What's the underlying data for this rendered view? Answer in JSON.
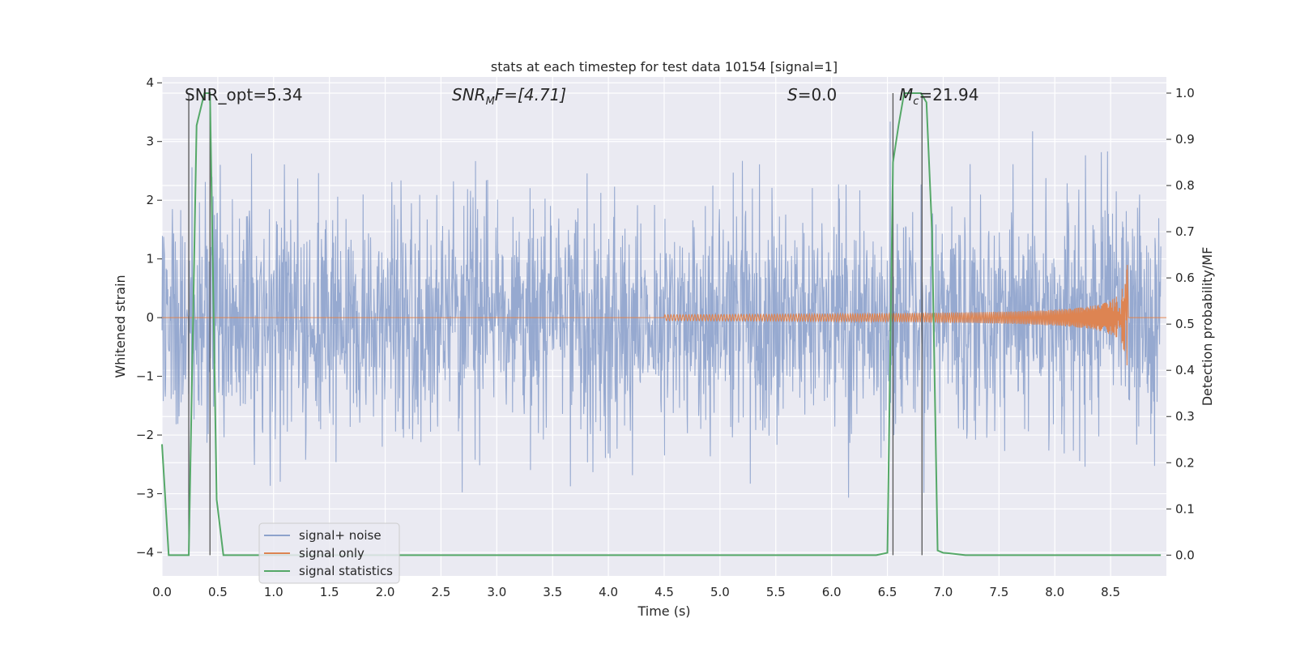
{
  "chart_data": {
    "type": "line",
    "title": "stats at each timestep for test data 10154 [signal=1]",
    "xlabel": "Time (s)",
    "ylabel_left": "Whitened strain",
    "ylabel_right": "Detection probability/MF",
    "xlim": [
      0.0,
      9.0
    ],
    "ylim_left": [
      -4.4,
      4.1
    ],
    "ylim_right": [
      -0.045,
      1.035
    ],
    "x_ticks": [
      "0.0",
      "0.5",
      "1.0",
      "1.5",
      "2.0",
      "2.5",
      "3.0",
      "3.5",
      "4.0",
      "4.5",
      "5.0",
      "5.5",
      "6.0",
      "6.5",
      "7.0",
      "7.5",
      "8.0",
      "8.5"
    ],
    "y_ticks_left": [
      "4",
      "3",
      "2",
      "1",
      "0",
      "−1",
      "−2",
      "−3",
      "−4"
    ],
    "y_ticks_right": [
      "1.0",
      "0.9",
      "0.8",
      "0.7",
      "0.6",
      "0.5",
      "0.4",
      "0.3",
      "0.2",
      "0.1",
      "0.0"
    ],
    "grid": true,
    "legend_placement": "lower-left",
    "annotations": {
      "snr_opt": "SNR_opt=5.34",
      "snr_mf_symbol": "SNR",
      "snr_mf_sub": "M",
      "snr_mf_rest": "F=[4.71]",
      "s_symbol": "S",
      "s_rest": "=0.0",
      "mc_symbol": "M",
      "mc_sub": "c",
      "mc_rest": "=21.94"
    },
    "series": [
      {
        "name": "signal+ noise",
        "color": "#8da2cc",
        "description_values": "whitened strain noise, roughly within [-2.5, 2.5] with spikes up to 3.6 and down to -4.0"
      },
      {
        "name": "signal only",
        "color": "#dd8452",
        "chirp_start": 4.5,
        "chirp_peak_time": 8.65,
        "chirp_peak_amplitude": 1.0
      },
      {
        "name": "signal statistics",
        "color": "#55a868",
        "x": [
          0.0,
          0.06,
          0.15,
          0.24,
          0.31,
          0.38,
          0.43,
          0.49,
          0.55,
          1.0,
          2.0,
          3.0,
          4.0,
          5.0,
          6.0,
          6.4,
          6.5,
          6.55,
          6.6,
          6.65,
          6.7,
          6.8,
          6.85,
          6.9,
          6.95,
          7.0,
          7.05,
          7.2,
          7.5,
          8.0,
          8.5,
          8.95
        ],
        "y": [
          0.24,
          0.0,
          0.0,
          0.0,
          0.93,
          1.0,
          1.0,
          0.12,
          0.0,
          0.0,
          0.0,
          0.0,
          0.0,
          0.0,
          0.0,
          0.0,
          0.005,
          0.85,
          0.93,
          1.0,
          1.0,
          1.0,
          0.98,
          0.7,
          0.01,
          0.005,
          0.004,
          0.0,
          0.0,
          0.0,
          0.0,
          0.0
        ]
      }
    ],
    "vertical_markers": [
      0.24,
      0.43,
      6.55,
      6.81
    ],
    "colors": {
      "plot_background": "#eaeaf2",
      "grid": "#ffffff",
      "marker_line": "#555555"
    }
  }
}
